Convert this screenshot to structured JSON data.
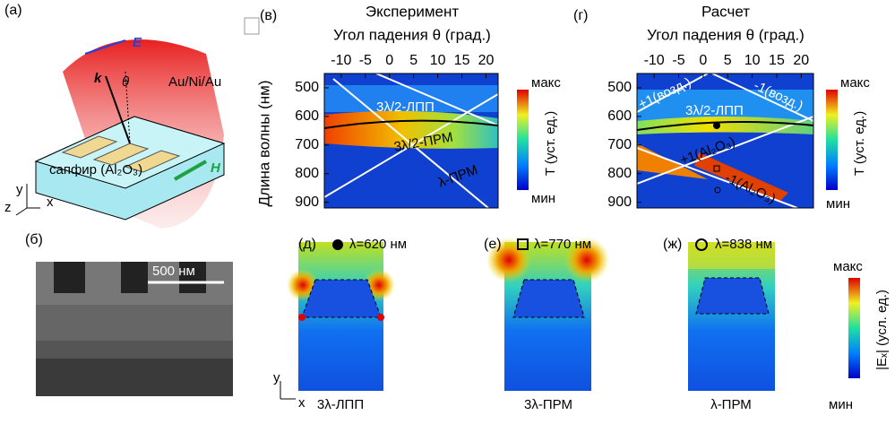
{
  "panels": {
    "a": {
      "label": "(а)",
      "e": "E",
      "k": "k",
      "theta": "θ",
      "metal": "Au/Ni/Au",
      "substrate": "сапфир (Al₂O₃)",
      "h": "H",
      "y": "y",
      "z": "z",
      "x": "x"
    },
    "b": {
      "label": "(б)",
      "scale": "500 нм"
    },
    "v": {
      "label": "(в)",
      "title": "Эксперимент",
      "xlabel": "Угол падения θ (град.)",
      "ylabel": "Длина волны (нм)",
      "xlim": [
        -13.5,
        22.5
      ],
      "ylim": [
        450,
        920
      ],
      "xticks": [
        -10,
        -5,
        0,
        5,
        10,
        15,
        20
      ],
      "yticks": [
        500,
        600,
        700,
        800,
        900
      ],
      "cmax": "макс",
      "cmin": "мин",
      "clabel": "T (уст. ед.)",
      "ann": [
        "3λ/2-ЛПП",
        "3λ/2-ПРМ",
        "λ-ПРМ"
      ]
    },
    "g": {
      "label": "(г)",
      "title": "Расчет",
      "xlabel": "Угол падения θ (град.)",
      "xlim": [
        -13.5,
        22.5
      ],
      "ylim": [
        450,
        920
      ],
      "xticks": [
        -10,
        -5,
        0,
        5,
        10,
        15,
        20
      ],
      "yticks": [
        500,
        600,
        700,
        800,
        900
      ],
      "cmax": "макс",
      "cmin": "мин",
      "clabel": "T (уст. ед.)",
      "ann": [
        "+1(возд.)",
        "-1(возд.)",
        "3λ/2-ЛПП",
        "+1(Al₂O₃)",
        "-1(Al₂O₃)"
      ]
    },
    "d": {
      "label": "(д)",
      "wavelength": "λ=620 нм",
      "mode": "3λ-ЛПП",
      "y": "y",
      "x": "x"
    },
    "e": {
      "label": "(е)",
      "wavelength": "λ=770 нм",
      "mode": "3λ-ПРМ"
    },
    "zh": {
      "label": "(ж)",
      "wavelength": "λ=838 нм",
      "mode": "λ-ПРМ",
      "cmax": "макс",
      "cmin": "мин",
      "clabel": "|Eₓ| (усл. ед.)"
    }
  }
}
